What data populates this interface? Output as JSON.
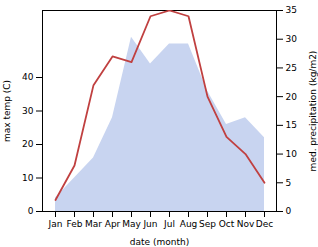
{
  "chart_data": {
    "type": "line",
    "categories": [
      "Jan",
      "Feb",
      "Mar",
      "Apr",
      "May",
      "Jun",
      "Jul",
      "Aug",
      "Sep",
      "Oct",
      "Nov",
      "Dec"
    ],
    "series": [
      {
        "type": "area",
        "color": "#c8d4f0",
        "values": [
          4,
          10,
          16,
          28,
          52,
          44,
          50,
          50,
          36,
          26,
          28,
          22
        ]
      },
      {
        "type": "line",
        "color": "#c04040",
        "axis": "y2",
        "values": [
          2,
          8,
          22,
          27,
          26,
          34,
          35,
          34,
          20,
          13,
          10,
          5
        ]
      }
    ],
    "xlabel": "date (month)",
    "ylabel": "max temp (C)",
    "y2label": "med. precipitation (kg/m2)",
    "ylim": [
      0,
      60
    ],
    "yticks": [
      0,
      10,
      20,
      30,
      40
    ],
    "y2lim": [
      0,
      35
    ],
    "y2ticks": [
      0,
      5,
      10,
      15,
      20,
      25,
      30,
      35
    ]
  }
}
